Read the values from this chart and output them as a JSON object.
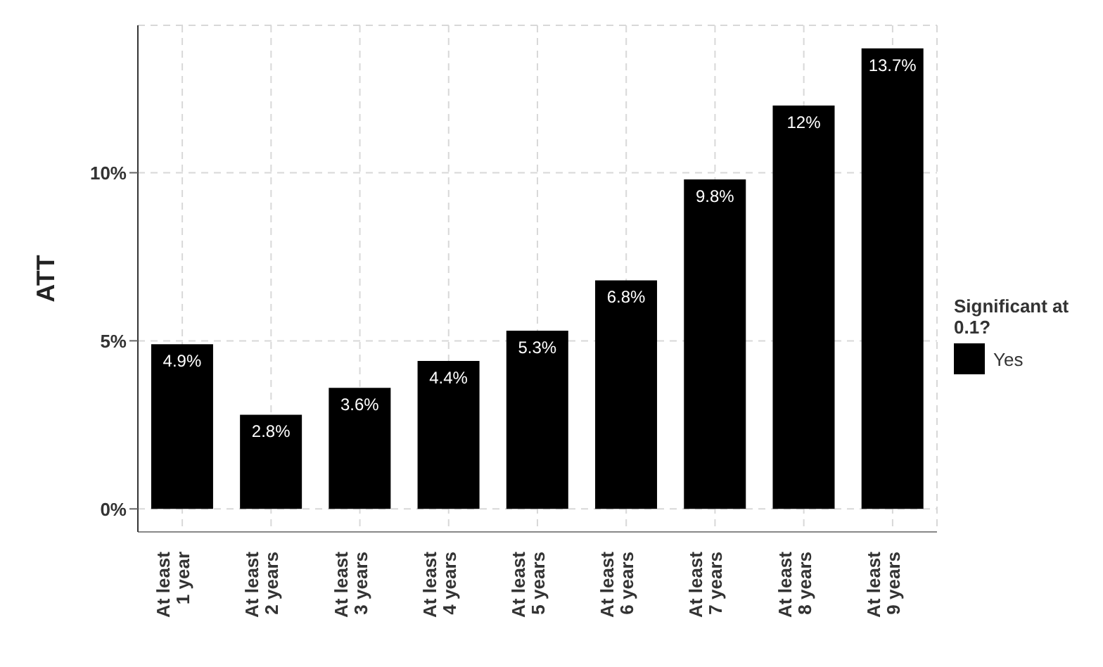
{
  "chart_data": {
    "type": "bar",
    "ylabel": "ATT",
    "legend_title": "Significant at 0.1?",
    "categories": [
      "At least 1 year",
      "At least 2 years",
      "At least 3 years",
      "At least 4 years",
      "At least 5 years",
      "At least 6 years",
      "At least 7 years",
      "At least 8 years",
      "At least 9 years"
    ],
    "series": [
      {
        "name": "Yes",
        "color": "#000000",
        "values": [
          4.9,
          2.8,
          3.6,
          4.4,
          5.3,
          6.8,
          9.8,
          12,
          13.7
        ],
        "value_labels": [
          "4.9%",
          "2.8%",
          "3.6%",
          "4.4%",
          "5.3%",
          "6.8%",
          "9.8%",
          "12%",
          "13.7%"
        ]
      }
    ],
    "ylim": [
      -0.685,
      14.385
    ],
    "yticks": [
      {
        "value": 0,
        "label": "0%"
      },
      {
        "value": 5,
        "label": "5%"
      },
      {
        "value": 10,
        "label": "10%"
      }
    ],
    "grid": true,
    "legend": "right"
  }
}
